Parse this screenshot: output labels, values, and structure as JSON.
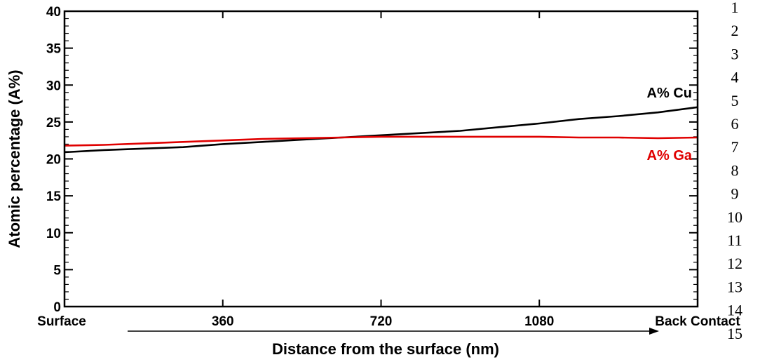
{
  "chart_data": {
    "type": "line",
    "xlabel": "Distance from the surface (nm)",
    "ylabel": "Atomic percentage (A%)",
    "x_tick_labels": [
      "Surface",
      "360",
      "720",
      "1080",
      "Back Contact"
    ],
    "x_tick_values": [
      0,
      360,
      720,
      1080,
      1440
    ],
    "xlim": [
      0,
      1440
    ],
    "ylim": [
      0,
      40
    ],
    "y_ticks": [
      0,
      5,
      10,
      15,
      20,
      25,
      30,
      35,
      40
    ],
    "grid": false,
    "series": [
      {
        "name": "A% Cu",
        "color": "#000000",
        "x": [
          0,
          90,
          180,
          270,
          360,
          450,
          540,
          630,
          720,
          810,
          900,
          990,
          1080,
          1170,
          1260,
          1350,
          1440
        ],
        "y": [
          20.9,
          21.2,
          21.4,
          21.6,
          22.0,
          22.3,
          22.6,
          22.9,
          23.2,
          23.5,
          23.8,
          24.3,
          24.8,
          25.4,
          25.8,
          26.3,
          27.0
        ]
      },
      {
        "name": "A% Ga",
        "color": "#e00000",
        "x": [
          0,
          90,
          180,
          270,
          360,
          450,
          540,
          630,
          720,
          810,
          900,
          990,
          1080,
          1170,
          1260,
          1350,
          1440
        ],
        "y": [
          21.8,
          21.9,
          22.1,
          22.3,
          22.5,
          22.7,
          22.8,
          22.9,
          23.0,
          23.0,
          23.0,
          23.0,
          23.0,
          22.9,
          22.9,
          22.8,
          22.9
        ]
      }
    ]
  },
  "line_numbers": [
    "1",
    "2",
    "3",
    "4",
    "5",
    "6",
    "7",
    "8",
    "9",
    "10",
    "11",
    "12",
    "13",
    "14",
    "15"
  ]
}
